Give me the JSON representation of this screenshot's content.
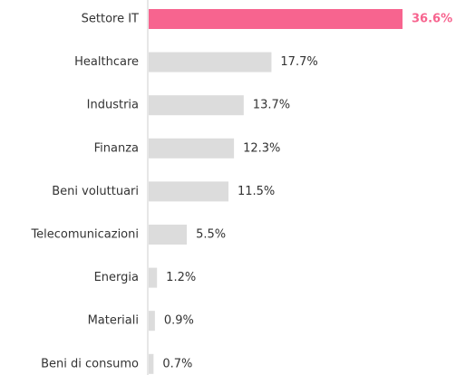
{
  "chart_data": {
    "type": "barh",
    "categories": [
      "Settore IT",
      "Healthcare",
      "Industria",
      "Finanza",
      "Beni voluttuari",
      "Telecomunicazioni",
      "Energia",
      "Materiali",
      "Beni di consumo"
    ],
    "values": [
      36.6,
      17.7,
      13.7,
      12.3,
      11.5,
      5.5,
      1.2,
      0.9,
      0.7
    ],
    "value_labels": [
      "36.6%",
      "17.7%",
      "13.7%",
      "12.3%",
      "11.5%",
      "5.5%",
      "1.2%",
      "0.9%",
      "0.7%"
    ],
    "colors": [
      "#f7648f",
      "#dcdcdc",
      "#dcdcdc",
      "#dcdcdc",
      "#dcdcdc",
      "#dcdcdc",
      "#dcdcdc",
      "#dcdcdc",
      "#dcdcdc"
    ],
    "highlight_color": "#f7648f"
  }
}
